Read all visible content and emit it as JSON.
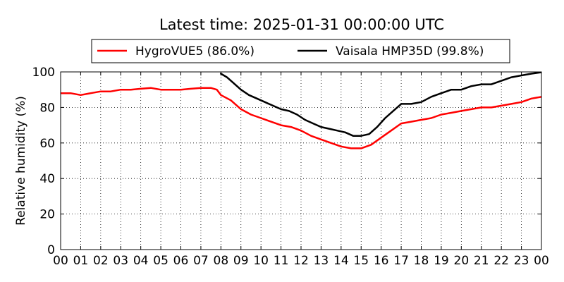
{
  "chart_data": {
    "type": "line",
    "title": "Latest time: 2025-01-31 00:00:00 UTC",
    "ylabel": "Relative humidity (%)",
    "xlabel": "",
    "xlim": [
      0,
      24
    ],
    "ylim": [
      0,
      100
    ],
    "x_ticks": [
      "00",
      "01",
      "02",
      "03",
      "04",
      "05",
      "06",
      "07",
      "08",
      "09",
      "10",
      "11",
      "12",
      "13",
      "14",
      "15",
      "16",
      "17",
      "18",
      "19",
      "20",
      "21",
      "22",
      "23",
      "00"
    ],
    "y_ticks": [
      0,
      20,
      40,
      60,
      80,
      100
    ],
    "grid": true,
    "legend": {
      "placement": "top",
      "entries": [
        "HygroVUE5 (86.0%)",
        "Vaisala HMP35D (99.8%)"
      ]
    },
    "series": [
      {
        "name": "HygroVUE5 (86.0%)",
        "color": "#ff0000",
        "x": [
          0,
          0.5,
          1,
          1.5,
          2,
          2.5,
          3,
          3.5,
          4,
          4.5,
          5,
          5.5,
          6,
          6.5,
          7,
          7.5,
          7.8,
          8,
          8.5,
          9,
          9.5,
          10,
          10.5,
          11,
          11.5,
          12,
          12.5,
          13,
          13.5,
          14,
          14.5,
          15,
          15.5,
          16,
          16.5,
          17,
          17.5,
          18,
          18.5,
          19,
          19.5,
          20,
          20.5,
          21,
          21.5,
          22,
          22.5,
          23,
          23.5,
          24
        ],
        "y": [
          88,
          88,
          87,
          88,
          89,
          89,
          90,
          90,
          90.5,
          91,
          90,
          90,
          90,
          90.5,
          91,
          91,
          90,
          87,
          84,
          79,
          76,
          74,
          72,
          70,
          69,
          67,
          64,
          62,
          60,
          58,
          57,
          57,
          59,
          63,
          67,
          71,
          72,
          73,
          74,
          76,
          77,
          78,
          79,
          80,
          80,
          81,
          82,
          83,
          85,
          86
        ]
      },
      {
        "name": "Vaisala HMP35D (99.8%)",
        "color": "#000000",
        "x": [
          8,
          8.3,
          8.6,
          9,
          9.4,
          9.8,
          10.2,
          10.6,
          11,
          11.4,
          11.8,
          12.2,
          12.6,
          13,
          13.4,
          13.8,
          14.2,
          14.6,
          15,
          15.4,
          15.8,
          16.2,
          16.6,
          17,
          17.5,
          18,
          18.5,
          19,
          19.5,
          20,
          20.5,
          21,
          21.5,
          22,
          22.5,
          23,
          23.5,
          24
        ],
        "y": [
          99,
          97,
          94,
          90,
          87,
          85,
          83,
          81,
          79,
          78,
          76,
          73,
          71,
          69,
          68,
          67,
          66,
          64,
          64,
          65,
          69,
          74,
          78,
          82,
          82,
          83,
          86,
          88,
          90,
          90,
          92,
          93,
          93,
          95,
          97,
          98,
          99,
          99.8
        ]
      }
    ]
  }
}
